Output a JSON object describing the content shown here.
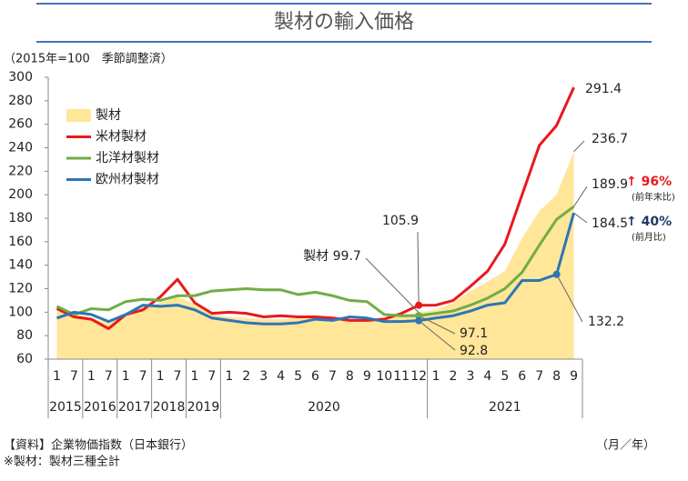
{
  "chart_data": {
    "type": "line",
    "title": "製材の輸入価格",
    "subtitle": "（2015年=100　季節調整済）",
    "source": "【資料】企業物価指数（日本銀行）",
    "note": "※製材：製材三種全計",
    "x_label": "（月／年）",
    "categories": [
      "1",
      "7",
      "1",
      "7",
      "1",
      "7",
      "1",
      "7",
      "1",
      "7",
      "1",
      "2",
      "3",
      "4",
      "5",
      "6",
      "7",
      "8",
      "9",
      "10",
      "11",
      "12",
      "1",
      "2",
      "3",
      "4",
      "5",
      "6",
      "7",
      "8",
      "9"
    ],
    "years": [
      "2015",
      null,
      "2016",
      null,
      "2017",
      null,
      "2018",
      null,
      "2019",
      null,
      "2020",
      null,
      null,
      null,
      null,
      null,
      null,
      null,
      null,
      null,
      null,
      null,
      "2021",
      null,
      null,
      null,
      null,
      null,
      null,
      null,
      null
    ],
    "ylim": [
      60,
      300
    ],
    "yticks": [
      60,
      80,
      100,
      120,
      140,
      160,
      180,
      200,
      220,
      240,
      260,
      280,
      300
    ],
    "grid": false,
    "legend": "upper left",
    "series": [
      {
        "name": "製材",
        "style": "area",
        "color": "#ffe699",
        "values": [
          103,
          99,
          95,
          91,
          97,
          104,
          108,
          113,
          107,
          98,
          96,
          95,
          94,
          94,
          95,
          96,
          95,
          94,
          94,
          96,
          97,
          99.7,
          102,
          108,
          118,
          126,
          135,
          163,
          186,
          200,
          236.7
        ],
        "value_labels": [
          null,
          null,
          null,
          null,
          null,
          null,
          null,
          null,
          null,
          null,
          null,
          null,
          null,
          null,
          null,
          null,
          null,
          null,
          null,
          null,
          null,
          "製材 99.7",
          null,
          null,
          null,
          null,
          null,
          null,
          null,
          null,
          "236.7"
        ]
      },
      {
        "name": "米材製材",
        "style": "line",
        "color": "#e8191d",
        "values": [
          103,
          96,
          94,
          86,
          98,
          102,
          113,
          128,
          108,
          99,
          100,
          99,
          96,
          97,
          96,
          96,
          95,
          93,
          93,
          94,
          99,
          105.9,
          106,
          110,
          122,
          135,
          158,
          200,
          242,
          259,
          291.4
        ],
        "value_labels": [
          null,
          null,
          null,
          null,
          null,
          null,
          null,
          null,
          null,
          null,
          null,
          null,
          null,
          null,
          null,
          null,
          null,
          null,
          null,
          null,
          null,
          "105.9",
          null,
          null,
          null,
          null,
          null,
          null,
          null,
          null,
          "291.4"
        ]
      },
      {
        "name": "北洋材製材",
        "style": "line",
        "color": "#70ad47",
        "values": [
          105,
          98,
          103,
          102,
          109,
          111,
          110,
          114,
          114,
          118,
          119,
          120,
          119,
          119,
          115,
          117,
          114,
          110,
          109,
          98,
          97,
          97.1,
          99,
          101,
          106,
          112,
          120,
          134,
          157,
          179,
          189.9
        ],
        "value_labels": [
          null,
          null,
          null,
          null,
          null,
          null,
          null,
          null,
          null,
          null,
          null,
          null,
          null,
          null,
          null,
          null,
          null,
          null,
          null,
          null,
          null,
          "97.1",
          null,
          null,
          null,
          null,
          null,
          null,
          null,
          null,
          "189.9"
        ]
      },
      {
        "name": "欧州材製材",
        "style": "line",
        "color": "#2e75b6",
        "values": [
          95,
          100,
          98,
          92,
          98,
          106,
          105,
          106,
          102,
          95,
          93,
          91,
          90,
          90,
          91,
          94,
          93,
          96,
          95,
          92,
          92,
          92.8,
          95,
          97,
          101,
          106,
          108,
          127,
          127,
          132.2,
          184.5
        ],
        "value_labels": [
          null,
          null,
          null,
          null,
          null,
          null,
          null,
          null,
          null,
          null,
          null,
          null,
          null,
          null,
          null,
          null,
          null,
          null,
          null,
          null,
          null,
          "92.8",
          null,
          null,
          null,
          null,
          null,
          null,
          null,
          "132.2",
          "184.5"
        ]
      }
    ],
    "annotations": [
      {
        "text": "↑ 96%",
        "note": "(前年末比)",
        "color": "#e8191d"
      },
      {
        "text": "↑ 40%",
        "note": "(前月比)",
        "color": "#1f3864"
      }
    ]
  }
}
